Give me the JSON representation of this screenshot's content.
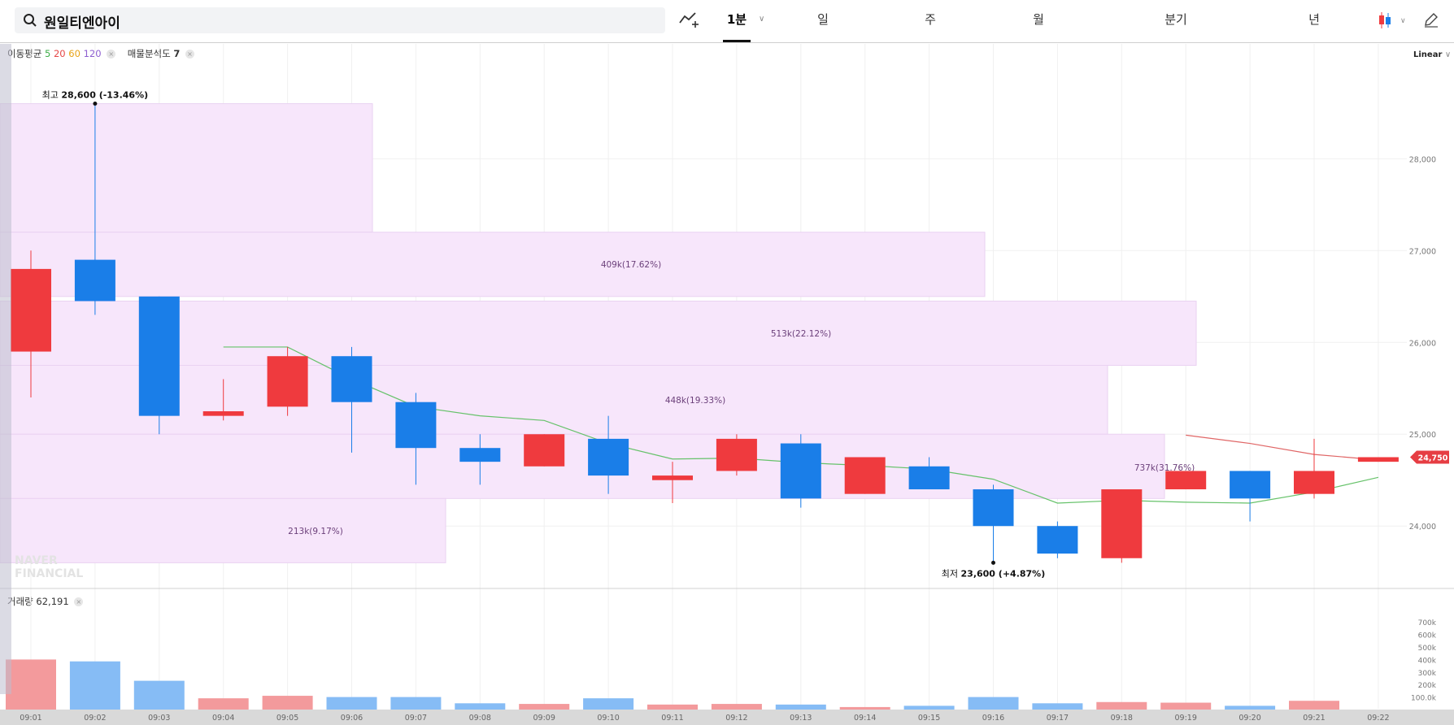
{
  "header": {
    "stock_name": "원일티엔아이",
    "periods": [
      {
        "label": "1분",
        "active": true
      },
      {
        "label": "일",
        "active": false
      },
      {
        "label": "주",
        "active": false
      },
      {
        "label": "월",
        "active": false
      },
      {
        "label": "분기",
        "active": false
      },
      {
        "label": "년",
        "active": false
      }
    ],
    "scale_mode": "Linear"
  },
  "legend": {
    "ma_label": "이동평균",
    "ma_periods": [
      {
        "value": "5",
        "color": "#3fae49"
      },
      {
        "value": "20",
        "color": "#e64848"
      },
      {
        "value": "60",
        "color": "#e8a317"
      },
      {
        "value": "120",
        "color": "#8e5fd0"
      }
    ],
    "volume_profile_label": "매물분석도",
    "volume_profile_value": "7",
    "volume_label": "거래량",
    "volume_total": "62,191"
  },
  "colors": {
    "up": "#ef3a3e",
    "down": "#1a7ee8",
    "ma5": "#66c26a",
    "ma20": "#e06666",
    "profile": "#f7e6fb",
    "price_tag": "#e63d43"
  },
  "watermark": [
    "NAVER",
    "FINANCIAL"
  ],
  "price_tag": "24,750",
  "chart_data": {
    "type": "candlestick",
    "x": [
      "09:01",
      "09:02",
      "09:03",
      "09:04",
      "09:05",
      "09:06",
      "09:07",
      "09:08",
      "09:09",
      "09:10",
      "09:11",
      "09:12",
      "09:13",
      "09:14",
      "09:15",
      "09:16",
      "09:17",
      "09:18",
      "09:19",
      "09:20",
      "09:21",
      "09:22"
    ],
    "ohlc": [
      {
        "o": 25900,
        "h": 27000,
        "l": 25400,
        "c": 26800
      },
      {
        "o": 26900,
        "h": 28600,
        "l": 26300,
        "c": 26450
      },
      {
        "o": 26500,
        "h": 26500,
        "l": 25000,
        "c": 25200
      },
      {
        "o": 25200,
        "h": 25600,
        "l": 25150,
        "c": 25250
      },
      {
        "o": 25300,
        "h": 25950,
        "l": 25200,
        "c": 25850
      },
      {
        "o": 25850,
        "h": 25950,
        "l": 24800,
        "c": 25350
      },
      {
        "o": 25350,
        "h": 25450,
        "l": 24450,
        "c": 24850
      },
      {
        "o": 24850,
        "h": 25000,
        "l": 24450,
        "c": 24700
      },
      {
        "o": 24650,
        "h": 25000,
        "l": 24650,
        "c": 25000
      },
      {
        "o": 24950,
        "h": 25200,
        "l": 24350,
        "c": 24550
      },
      {
        "o": 24500,
        "h": 24700,
        "l": 24250,
        "c": 24550
      },
      {
        "o": 24600,
        "h": 25000,
        "l": 24550,
        "c": 24950
      },
      {
        "o": 24900,
        "h": 25000,
        "l": 24200,
        "c": 24300
      },
      {
        "o": 24350,
        "h": 24750,
        "l": 24350,
        "c": 24750
      },
      {
        "o": 24650,
        "h": 24750,
        "l": 24400,
        "c": 24400
      },
      {
        "o": 24400,
        "h": 24450,
        "l": 23600,
        "c": 24000
      },
      {
        "o": 24000,
        "h": 24050,
        "l": 23650,
        "c": 23700
      },
      {
        "o": 23650,
        "h": 24400,
        "l": 23600,
        "c": 24400
      },
      {
        "o": 24400,
        "h": 24600,
        "l": 24400,
        "c": 24600
      },
      {
        "o": 24600,
        "h": 24600,
        "l": 24050,
        "c": 24300
      },
      {
        "o": 24350,
        "h": 24950,
        "l": 24300,
        "c": 24600
      },
      {
        "o": 24700,
        "h": 24750,
        "l": 24700,
        "c": 24750
      }
    ],
    "ma": [
      {
        "name": "5",
        "values": [
          null,
          null,
          null,
          25950,
          25950,
          25600,
          25300,
          25200,
          25150,
          24900,
          24730,
          24740,
          24690,
          24660,
          24620,
          24510,
          24250,
          24280,
          24260,
          24250,
          24370,
          24530
        ]
      },
      {
        "name": "20",
        "values": [
          null,
          null,
          null,
          null,
          null,
          null,
          null,
          null,
          null,
          null,
          null,
          null,
          null,
          null,
          null,
          null,
          null,
          null,
          24990,
          24900,
          24780,
          24720
        ]
      }
    ],
    "volume": [
      400000,
      385000,
      230000,
      90000,
      110000,
      100000,
      100000,
      50000,
      45000,
      90000,
      40000,
      45000,
      40000,
      20000,
      30000,
      100000,
      50000,
      60000,
      55000,
      30000,
      70000,
      null
    ],
    "volume_profile": [
      {
        "low": 27200,
        "high": 28600,
        "label": "",
        "pct": null
      },
      {
        "low": 26500,
        "high": 27200,
        "label": "409k(17.62%)"
      },
      {
        "low": 25750,
        "high": 26450,
        "label": "513k(22.12%)"
      },
      {
        "low": 25000,
        "high": 25750,
        "label": "448k(19.33%)"
      },
      {
        "low": 24300,
        "high": 25000,
        "label": "737k(31.76%)"
      },
      {
        "low": 23600,
        "high": 24300,
        "label": "213k(9.17%)"
      }
    ],
    "high_annotation": {
      "label_prefix": "최고",
      "value": "28,600",
      "pct": "(-13.46%)"
    },
    "low_annotation": {
      "label_prefix": "최저",
      "value": "23,600",
      "pct": "(+4.87%)"
    },
    "y_ticks": [
      "28,000",
      "27,000",
      "26,000",
      "25,000",
      "24,000"
    ],
    "y_tick_values": [
      28000,
      27000,
      26000,
      25000,
      24000
    ],
    "ylim": [
      23400,
      28950
    ],
    "volume_ticks": [
      "700k",
      "600k",
      "500k",
      "400k",
      "300k",
      "200k",
      "100.0k"
    ],
    "volume_tick_values": [
      700000,
      600000,
      500000,
      400000,
      300000,
      200000,
      100000
    ],
    "volume_ylim": [
      0,
      760000
    ],
    "last_price": 24750
  }
}
